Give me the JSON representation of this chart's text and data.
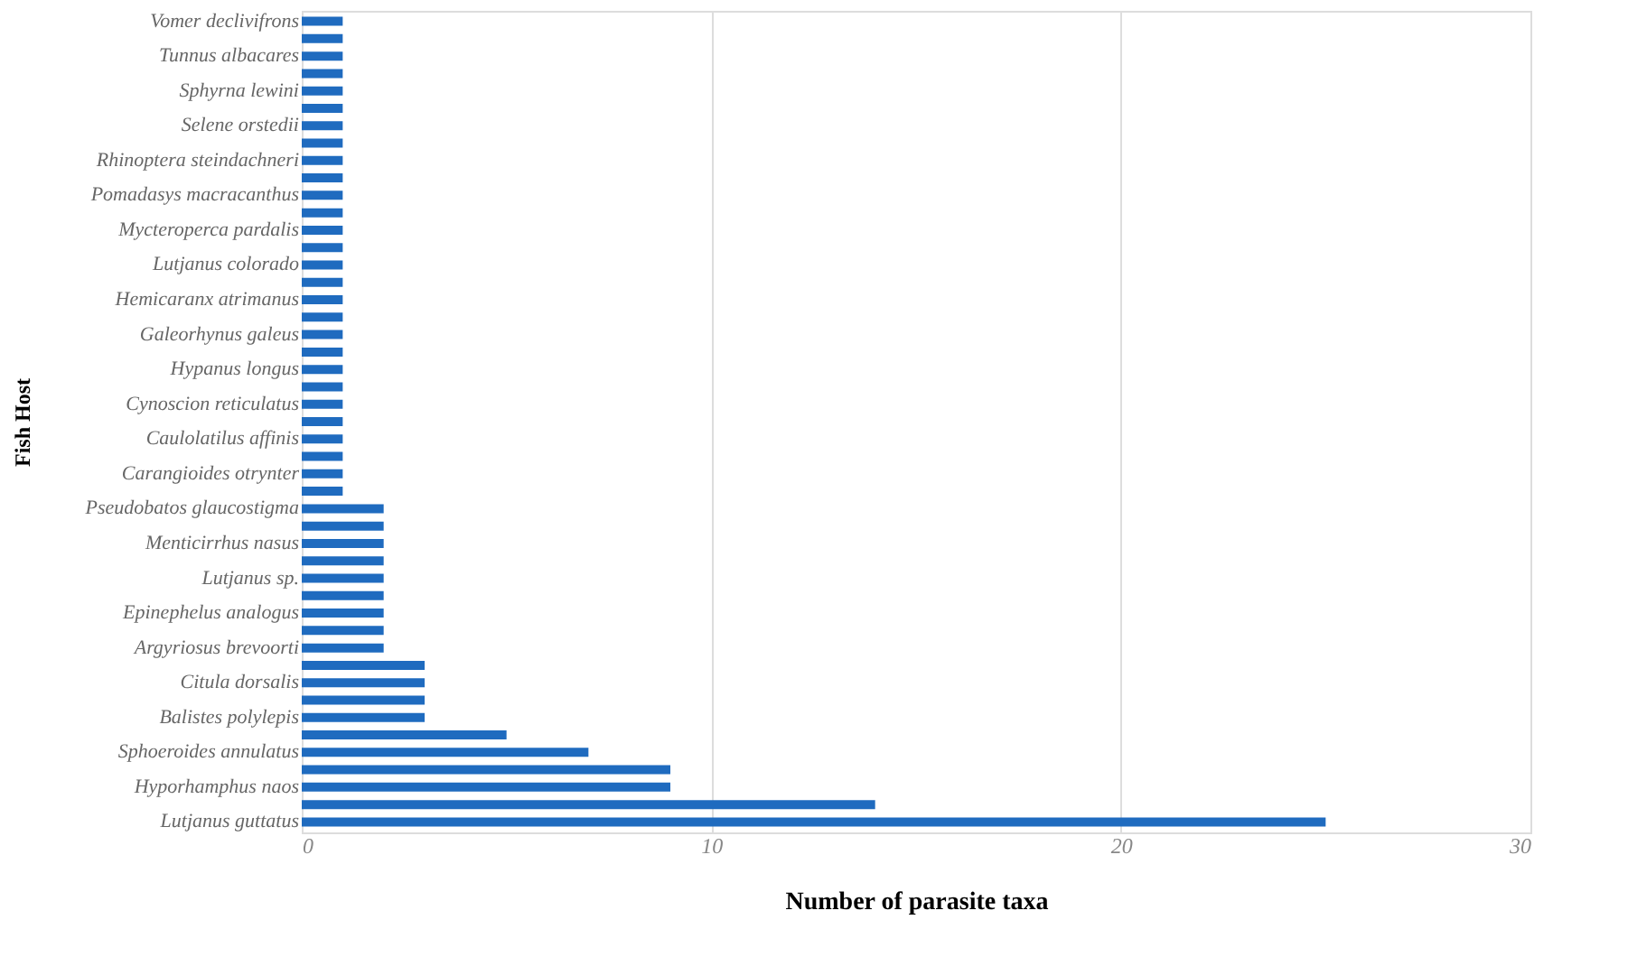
{
  "chart_data": {
    "type": "bar",
    "orientation": "horizontal",
    "xlabel": "Number of parasite taxa",
    "ylabel": "Fish Host",
    "categories": [
      "Vomer declivifrons",
      null,
      "Tunnus albacares",
      null,
      "Sphyrna lewini",
      null,
      "Selene orstedii",
      null,
      "Rhinoptera steindachneri",
      null,
      "Pomadasys macracanthus",
      null,
      "Mycteroperca pardalis",
      null,
      "Lutjanus colorado",
      null,
      "Hemicaranx atrimanus",
      null,
      "Galeorhynus galeus",
      null,
      "Hypanus longus",
      null,
      "Cynoscion reticulatus",
      null,
      "Caulolatilus affinis",
      null,
      "Carangioides otrynter",
      null,
      "Pseudobatos glaucostigma",
      null,
      "Menticirrhus nasus",
      null,
      "Lutjanus sp.",
      null,
      "Epinephelus analogus",
      null,
      "Argyriosus brevoorti",
      null,
      "Citula dorsalis",
      null,
      "Balistes polylepis",
      null,
      "Sphoeroides annulatus",
      null,
      "Hyporhamphus naos",
      null,
      "Lutjanus guttatus"
    ],
    "values": [
      1,
      1,
      1,
      1,
      1,
      1,
      1,
      1,
      1,
      1,
      1,
      1,
      1,
      1,
      1,
      1,
      1,
      1,
      1,
      1,
      1,
      1,
      1,
      1,
      1,
      1,
      1,
      1,
      2,
      2,
      2,
      2,
      2,
      2,
      2,
      2,
      2,
      3,
      3,
      3,
      3,
      5,
      7,
      9,
      9,
      14,
      25
    ],
    "color": "#1f6bbf",
    "xlim": [
      0,
      30
    ],
    "xticks": [
      0,
      10,
      20,
      30
    ],
    "grid": "x"
  }
}
